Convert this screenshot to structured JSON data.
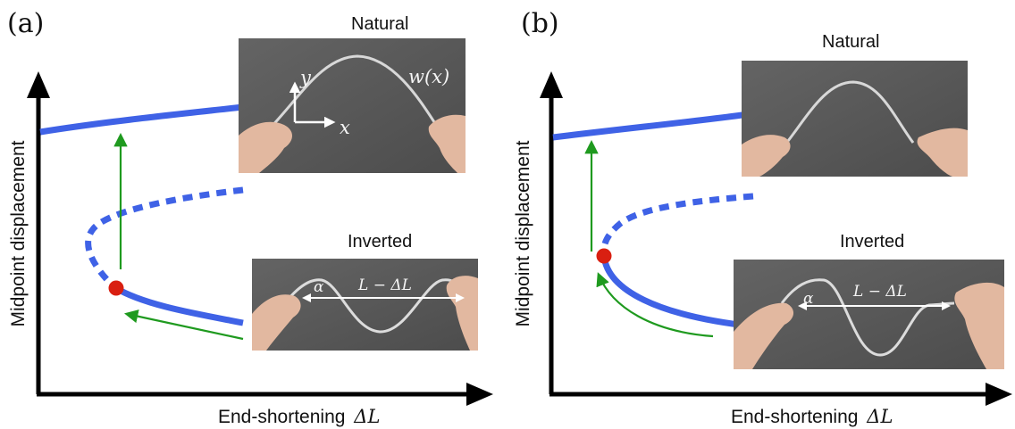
{
  "panels": [
    {
      "label": "(a)",
      "ylabel": "Midpoint displacement",
      "xlabel_text": "End-shortening",
      "xlabel_symbol": "ΔL",
      "natural": {
        "title": "Natural",
        "axis_y": "y",
        "axis_x": "x",
        "curve": "w(x)"
      },
      "inverted": {
        "title": "Inverted",
        "angle": "α",
        "length": "L − ΔL"
      }
    },
    {
      "label": "(b)",
      "ylabel": "Midpoint displacement",
      "xlabel_text": "End-shortening",
      "xlabel_symbol": "ΔL",
      "natural": {
        "title": "Natural"
      },
      "inverted": {
        "title": "Inverted",
        "angle": "α",
        "length": "L − ΔL"
      }
    }
  ],
  "colors": {
    "branch": "#3f62e6",
    "transition_arrow": "#1f9a1f",
    "critical_point": "#d91f11",
    "photo_bg": "#5a5a5a",
    "axis": "#000000"
  }
}
